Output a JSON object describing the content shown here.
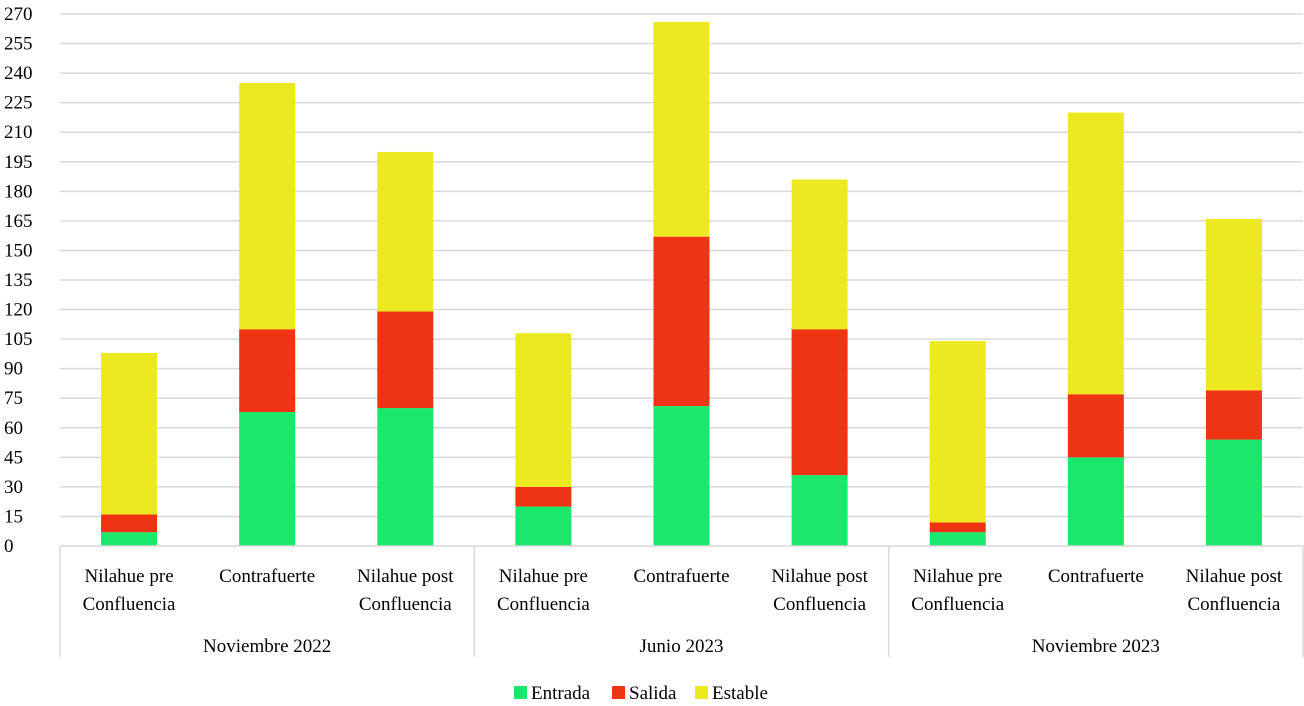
{
  "chart_data": {
    "type": "bar",
    "stacked": true,
    "groups": [
      {
        "label": "Noviembre 2022",
        "categories": [
          [
            "Nilahue pre",
            "Confluencia"
          ],
          [
            "Contrafuerte"
          ],
          [
            "Nilahue post",
            "Confluencia"
          ]
        ]
      },
      {
        "label": "Junio 2023",
        "categories": [
          [
            "Nilahue pre",
            "Confluencia"
          ],
          [
            "Contrafuerte"
          ],
          [
            "Nilahue post",
            "Confluencia"
          ]
        ]
      },
      {
        "label": "Noviembre 2023",
        "categories": [
          [
            "Nilahue pre",
            "Confluencia"
          ],
          [
            "Contrafuerte"
          ],
          [
            "Nilahue post",
            "Confluencia"
          ]
        ]
      }
    ],
    "series": [
      {
        "name": "Entrada",
        "color": "#19e86c",
        "values": [
          7,
          68,
          70,
          20,
          71,
          36,
          7,
          45,
          54
        ]
      },
      {
        "name": "Salida",
        "color": "#ef3414",
        "values": [
          9,
          42,
          49,
          10,
          86,
          74,
          5,
          32,
          25
        ]
      },
      {
        "name": "Estable",
        "color": "#ece921",
        "values": [
          82,
          125,
          81,
          78,
          109,
          76,
          92,
          143,
          87
        ]
      }
    ],
    "ylim": [
      0,
      270
    ],
    "yticks": [
      0,
      15,
      30,
      45,
      60,
      75,
      90,
      105,
      120,
      135,
      150,
      165,
      180,
      195,
      210,
      225,
      240,
      255,
      270
    ],
    "grid": true,
    "legend_position": "bottom"
  }
}
